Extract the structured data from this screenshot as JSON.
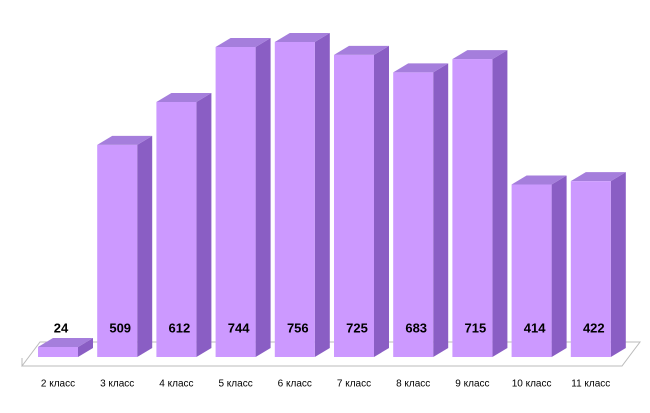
{
  "chart_data": {
    "type": "bar3d",
    "categories": [
      "2 класс",
      "3 класс",
      "4 класс",
      "5 класс",
      "6 класс",
      "7 класс",
      "8 класс",
      "9 класс",
      "10 класс",
      "11 класс"
    ],
    "values": [
      24,
      509,
      612,
      744,
      756,
      725,
      683,
      715,
      414,
      422
    ],
    "color": "#cc99ff"
  }
}
